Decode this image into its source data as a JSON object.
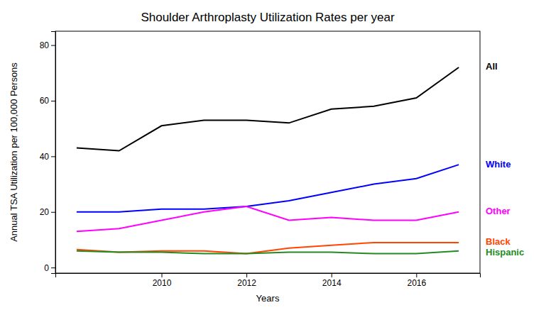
{
  "chart_data": {
    "type": "line",
    "title": "Shoulder Arthroplasty Utilization Rates per year",
    "xlabel": "Years",
    "ylabel": "Annual TSA Utilization per 100,000 Persons",
    "x": [
      2008,
      2009,
      2010,
      2011,
      2012,
      2013,
      2014,
      2015,
      2016,
      2017
    ],
    "series": [
      {
        "name": "All",
        "color": "#000000",
        "values": [
          43,
          42,
          51,
          53,
          53,
          52,
          57,
          58,
          61,
          72
        ]
      },
      {
        "name": "White",
        "color": "#0000FF",
        "values": [
          20,
          20,
          21,
          21,
          22,
          24,
          27,
          30,
          32,
          37
        ]
      },
      {
        "name": "Other",
        "color": "#FF00FF",
        "values": [
          13,
          14,
          17,
          20,
          22,
          17,
          18,
          17,
          17,
          20
        ]
      },
      {
        "name": "Black",
        "color": "#FF4500",
        "values": [
          6.5,
          5.5,
          6,
          6,
          5,
          7,
          8,
          9,
          9,
          9
        ]
      },
      {
        "name": "Hispanic",
        "color": "#228B22",
        "values": [
          6,
          5.5,
          5.5,
          5,
          5,
          5.5,
          5.5,
          5,
          5,
          6
        ]
      }
    ],
    "xlim": [
      2007.5,
      2017.5
    ],
    "xticks": [
      2010,
      2012,
      2014,
      2016
    ],
    "ylim": [
      -2,
      85
    ],
    "yticks": [
      0,
      20,
      40,
      60,
      80
    ],
    "grid": false
  }
}
